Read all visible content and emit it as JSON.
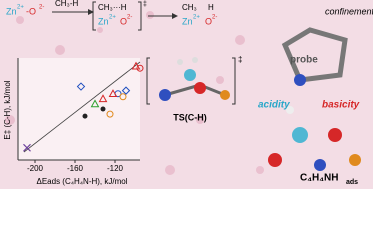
{
  "scheme": {
    "reactant_zn": "Zn",
    "reactant_zn_charge": "2+",
    "reactant_o": "-O",
    "reactant_o_charge": "2-",
    "reagent": "CH₃-H",
    "ts_ch3": "CH₃···H",
    "ts_zn": "Zn",
    "ts_zn_charge": "2+",
    "ts_o": "O",
    "ts_o_charge": "2-",
    "ts_mark": "‡",
    "product_ch3": "CH₃",
    "product_h": "H",
    "product_zn": "Zn",
    "product_zn_charge": "2+",
    "product_o": "O",
    "product_o_charge": "2-"
  },
  "plot": {
    "type": "scatter",
    "y_label": "E‡ (C-H), kJ/mol",
    "x_label": "ΔEads (C₄H₄N-H), kJ/mol",
    "xlim": [
      -217,
      -95
    ],
    "xticks": [
      -200,
      -160,
      -120
    ],
    "ylim": [
      0,
      1
    ],
    "points": [
      {
        "x": -208,
        "y": 0.12,
        "color": "#6a3d9a",
        "marker": "cross"
      },
      {
        "x": -150,
        "y": 0.43,
        "color": "#222222",
        "marker": "dot"
      },
      {
        "x": -132,
        "y": 0.5,
        "color": "#222222",
        "marker": "dot"
      },
      {
        "x": -154,
        "y": 0.72,
        "color": "#1f4fbf",
        "marker": "diamond"
      },
      {
        "x": -117,
        "y": 0.65,
        "color": "#1f4fbf",
        "marker": "circle"
      },
      {
        "x": -109,
        "y": 0.68,
        "color": "#1f4fbf",
        "marker": "diamond"
      },
      {
        "x": -132,
        "y": 0.6,
        "color": "#d62728",
        "marker": "triangle"
      },
      {
        "x": -122,
        "y": 0.65,
        "color": "#d62728",
        "marker": "triangle"
      },
      {
        "x": -99,
        "y": 0.92,
        "color": "#d62728",
        "marker": "triangle"
      },
      {
        "x": -95,
        "y": 0.9,
        "color": "#d62728",
        "marker": "circle"
      },
      {
        "x": -125,
        "y": 0.45,
        "color": "#e08a1e",
        "marker": "circle"
      },
      {
        "x": -112,
        "y": 0.62,
        "color": "#e08a1e",
        "marker": "circle"
      },
      {
        "x": -140,
        "y": 0.55,
        "color": "#2ca02c",
        "marker": "triangle"
      }
    ]
  },
  "ts_label": "TS(C-H)",
  "ts_mark": "‡",
  "molecule": {
    "confinement": "confinement",
    "probe": "probe",
    "acidity": "acidity",
    "basicity": "basicity",
    "adsorbate": "C₄H₄NH",
    "adsorbate_sub": "ads"
  }
}
